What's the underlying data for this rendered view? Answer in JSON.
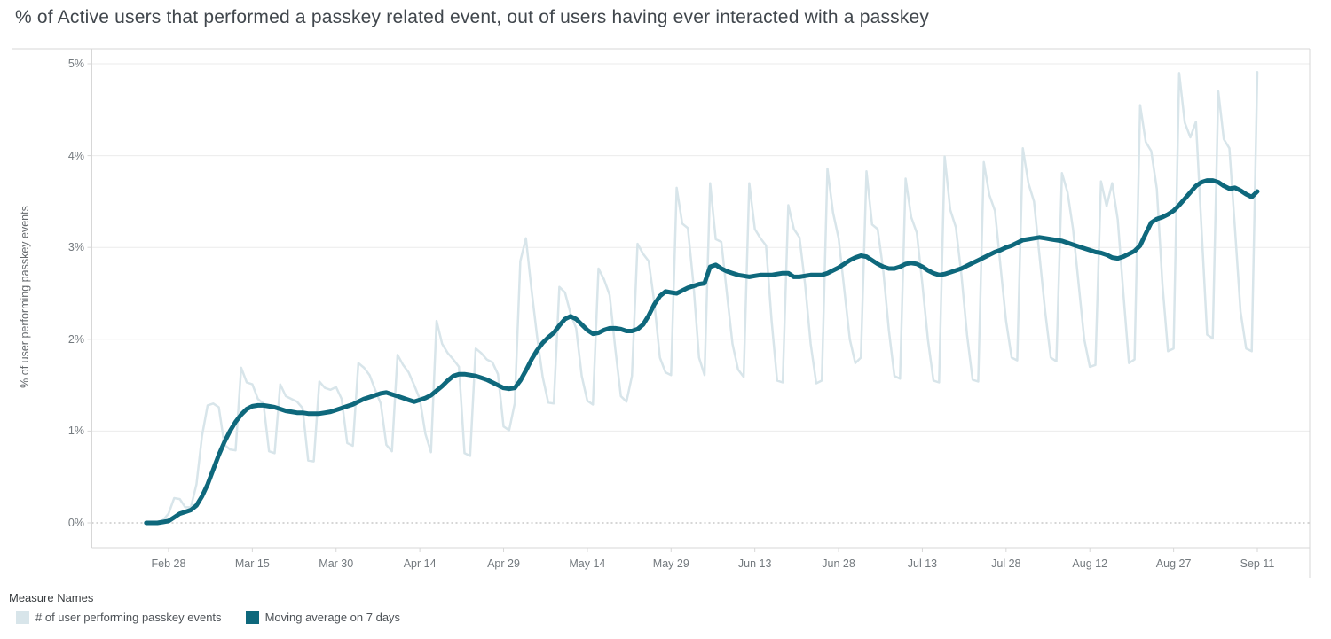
{
  "title": "% of Active users that performed a passkey related event, out of users having ever interacted with a passkey",
  "y_axis": {
    "title": "% of user performing passkey events",
    "ticks": [
      "0%",
      "1%",
      "2%",
      "3%",
      "4%",
      "5%"
    ],
    "min": 0,
    "max": 5
  },
  "x_axis": {
    "ticks": [
      "Feb 28",
      "Mar 15",
      "Mar 30",
      "Apr 14",
      "Apr 29",
      "May 14",
      "May 29",
      "Jun 13",
      "Jun 28",
      "Jul 13",
      "Jul 28",
      "Aug 12",
      "Aug 27",
      "Sep 11"
    ]
  },
  "legend": {
    "title": "Measure Names",
    "items": [
      {
        "label": "# of user performing passkey events",
        "color": "#d8e5ea"
      },
      {
        "label": "Moving average on 7 days",
        "color": "#0e687c"
      }
    ]
  },
  "colors": {
    "gridline": "#ebebeb",
    "zero_line": "#c8c8c8",
    "axis_border": "#d7d7d7",
    "series_raw": "#d8e5ea",
    "series_avg": "#0e687c"
  },
  "chart_data": {
    "type": "line",
    "title": "% of Active users that performed a passkey related event, out of users having ever interacted with a passkey",
    "xlabel": "",
    "ylabel": "% of user performing passkey events",
    "ylim": [
      0,
      5
    ],
    "unit": "percent",
    "grid": "horizontal",
    "legend_position": "bottom-left",
    "x": [
      "Feb 24",
      "Feb 25",
      "Feb 26",
      "Feb 27",
      "Feb 28",
      "Mar 1",
      "Mar 2",
      "Mar 3",
      "Mar 4",
      "Mar 5",
      "Mar 6",
      "Mar 7",
      "Mar 8",
      "Mar 9",
      "Mar 10",
      "Mar 11",
      "Mar 12",
      "Mar 13",
      "Mar 14",
      "Mar 15",
      "Mar 16",
      "Mar 17",
      "Mar 18",
      "Mar 19",
      "Mar 20",
      "Mar 21",
      "Mar 22",
      "Mar 23",
      "Mar 24",
      "Mar 25",
      "Mar 26",
      "Mar 27",
      "Mar 28",
      "Mar 29",
      "Mar 30",
      "Mar 31",
      "Apr 1",
      "Apr 2",
      "Apr 3",
      "Apr 4",
      "Apr 5",
      "Apr 6",
      "Apr 7",
      "Apr 8",
      "Apr 9",
      "Apr 10",
      "Apr 11",
      "Apr 12",
      "Apr 13",
      "Apr 14",
      "Apr 15",
      "Apr 16",
      "Apr 17",
      "Apr 18",
      "Apr 19",
      "Apr 20",
      "Apr 21",
      "Apr 22",
      "Apr 23",
      "Apr 24",
      "Apr 25",
      "Apr 26",
      "Apr 27",
      "Apr 28",
      "Apr 29",
      "Apr 30",
      "May 1",
      "May 2",
      "May 3",
      "May 4",
      "May 5",
      "May 6",
      "May 7",
      "May 8",
      "May 9",
      "May 10",
      "May 11",
      "May 12",
      "May 13",
      "May 14",
      "May 15",
      "May 16",
      "May 17",
      "May 18",
      "May 19",
      "May 20",
      "May 21",
      "May 22",
      "May 23",
      "May 24",
      "May 25",
      "May 26",
      "May 27",
      "May 28",
      "May 29",
      "May 30",
      "May 31",
      "Jun 1",
      "Jun 2",
      "Jun 3",
      "Jun 4",
      "Jun 5",
      "Jun 6",
      "Jun 7",
      "Jun 8",
      "Jun 9",
      "Jun 10",
      "Jun 11",
      "Jun 12",
      "Jun 13",
      "Jun 14",
      "Jun 15",
      "Jun 16",
      "Jun 17",
      "Jun 18",
      "Jun 19",
      "Jun 20",
      "Jun 21",
      "Jun 22",
      "Jun 23",
      "Jun 24",
      "Jun 25",
      "Jun 26",
      "Jun 27",
      "Jun 28",
      "Jun 29",
      "Jun 30",
      "Jul 1",
      "Jul 2",
      "Jul 3",
      "Jul 4",
      "Jul 5",
      "Jul 6",
      "Jul 7",
      "Jul 8",
      "Jul 9",
      "Jul 10",
      "Jul 11",
      "Jul 12",
      "Jul 13",
      "Jul 14",
      "Jul 15",
      "Jul 16",
      "Jul 17",
      "Jul 18",
      "Jul 19",
      "Jul 20",
      "Jul 21",
      "Jul 22",
      "Jul 23",
      "Jul 24",
      "Jul 25",
      "Jul 26",
      "Jul 27",
      "Jul 28",
      "Jul 29",
      "Jul 30",
      "Jul 31",
      "Aug 1",
      "Aug 2",
      "Aug 3",
      "Aug 4",
      "Aug 5",
      "Aug 6",
      "Aug 7",
      "Aug 8",
      "Aug 9",
      "Aug 10",
      "Aug 11",
      "Aug 12",
      "Aug 13",
      "Aug 14",
      "Aug 15",
      "Aug 16",
      "Aug 17",
      "Aug 18",
      "Aug 19",
      "Aug 20",
      "Aug 21",
      "Aug 22",
      "Aug 23",
      "Aug 24",
      "Aug 25",
      "Aug 26",
      "Aug 27",
      "Aug 28",
      "Aug 29",
      "Aug 30",
      "Aug 31",
      "Sep 1",
      "Sep 2",
      "Sep 3",
      "Sep 4",
      "Sep 5",
      "Sep 6",
      "Sep 7",
      "Sep 8",
      "Sep 9",
      "Sep 10",
      "Sep 11"
    ],
    "series": [
      {
        "name": "# of user performing passkey events",
        "color": "#d8e5ea",
        "width": 2.5,
        "values": [
          0.0,
          0.0,
          0.01,
          0.03,
          0.1,
          0.27,
          0.26,
          0.17,
          0.17,
          0.42,
          0.95,
          1.28,
          1.3,
          1.26,
          0.85,
          0.8,
          0.79,
          1.69,
          1.53,
          1.51,
          1.35,
          1.3,
          0.78,
          0.76,
          1.51,
          1.38,
          1.35,
          1.32,
          1.25,
          0.68,
          0.67,
          1.54,
          1.47,
          1.45,
          1.48,
          1.35,
          0.87,
          0.84,
          1.74,
          1.69,
          1.61,
          1.45,
          1.3,
          0.85,
          0.78,
          1.83,
          1.72,
          1.64,
          1.5,
          1.35,
          0.97,
          0.77,
          2.2,
          1.95,
          1.85,
          1.78,
          1.7,
          0.76,
          0.73,
          1.9,
          1.85,
          1.78,
          1.75,
          1.62,
          1.05,
          1.01,
          1.3,
          2.85,
          3.1,
          2.54,
          2.03,
          1.59,
          1.31,
          1.3,
          2.57,
          2.51,
          2.28,
          2.12,
          1.6,
          1.33,
          1.29,
          2.77,
          2.65,
          2.48,
          1.9,
          1.38,
          1.32,
          1.6,
          3.04,
          2.93,
          2.85,
          2.4,
          1.8,
          1.64,
          1.61,
          3.65,
          3.26,
          3.21,
          2.6,
          1.8,
          1.61,
          3.7,
          3.09,
          3.06,
          2.5,
          1.95,
          1.67,
          1.59,
          3.7,
          3.2,
          3.1,
          3.02,
          2.2,
          1.55,
          1.53,
          3.46,
          3.2,
          3.11,
          2.6,
          1.95,
          1.52,
          1.55,
          3.86,
          3.38,
          3.1,
          2.55,
          2.0,
          1.74,
          1.8,
          3.83,
          3.25,
          3.2,
          2.75,
          2.1,
          1.6,
          1.57,
          3.75,
          3.33,
          3.16,
          2.6,
          2.0,
          1.55,
          1.53,
          3.99,
          3.41,
          3.22,
          2.7,
          2.05,
          1.56,
          1.54,
          3.93,
          3.57,
          3.4,
          2.8,
          2.2,
          1.8,
          1.77,
          4.08,
          3.7,
          3.5,
          2.9,
          2.3,
          1.8,
          1.76,
          3.81,
          3.6,
          3.2,
          2.6,
          2.0,
          1.7,
          1.72,
          3.72,
          3.45,
          3.7,
          3.3,
          2.5,
          1.74,
          1.78,
          4.55,
          4.15,
          4.05,
          3.64,
          2.6,
          1.87,
          1.9,
          4.9,
          4.36,
          4.2,
          4.37,
          3.2,
          2.05,
          2.01,
          4.7,
          4.18,
          4.08,
          3.2,
          2.3,
          1.9,
          1.87,
          4.91
        ]
      },
      {
        "name": "Moving average on 7 days",
        "color": "#0e687c",
        "width": 5,
        "values": [
          0.0,
          0.0,
          0.0,
          0.01,
          0.02,
          0.06,
          0.1,
          0.12,
          0.14,
          0.19,
          0.29,
          0.42,
          0.58,
          0.74,
          0.88,
          1.0,
          1.1,
          1.18,
          1.24,
          1.27,
          1.28,
          1.28,
          1.27,
          1.26,
          1.24,
          1.22,
          1.21,
          1.2,
          1.2,
          1.19,
          1.19,
          1.19,
          1.2,
          1.21,
          1.23,
          1.25,
          1.27,
          1.29,
          1.32,
          1.35,
          1.37,
          1.39,
          1.41,
          1.42,
          1.4,
          1.38,
          1.36,
          1.34,
          1.32,
          1.34,
          1.36,
          1.39,
          1.44,
          1.49,
          1.55,
          1.6,
          1.62,
          1.62,
          1.61,
          1.6,
          1.58,
          1.56,
          1.53,
          1.5,
          1.47,
          1.46,
          1.47,
          1.55,
          1.66,
          1.78,
          1.88,
          1.96,
          2.02,
          2.07,
          2.15,
          2.22,
          2.25,
          2.22,
          2.16,
          2.1,
          2.06,
          2.07,
          2.1,
          2.12,
          2.12,
          2.11,
          2.09,
          2.09,
          2.11,
          2.16,
          2.26,
          2.38,
          2.47,
          2.52,
          2.51,
          2.5,
          2.53,
          2.56,
          2.58,
          2.6,
          2.61,
          2.79,
          2.81,
          2.77,
          2.74,
          2.72,
          2.7,
          2.69,
          2.68,
          2.69,
          2.7,
          2.7,
          2.7,
          2.71,
          2.72,
          2.72,
          2.68,
          2.68,
          2.69,
          2.7,
          2.7,
          2.7,
          2.72,
          2.75,
          2.78,
          2.82,
          2.86,
          2.89,
          2.91,
          2.9,
          2.86,
          2.82,
          2.79,
          2.77,
          2.77,
          2.79,
          2.82,
          2.83,
          2.82,
          2.79,
          2.75,
          2.72,
          2.7,
          2.71,
          2.73,
          2.75,
          2.77,
          2.8,
          2.83,
          2.86,
          2.89,
          2.92,
          2.95,
          2.97,
          3.0,
          3.02,
          3.05,
          3.08,
          3.09,
          3.1,
          3.11,
          3.1,
          3.09,
          3.08,
          3.07,
          3.05,
          3.03,
          3.01,
          2.99,
          2.97,
          2.95,
          2.94,
          2.92,
          2.89,
          2.88,
          2.9,
          2.93,
          2.96,
          3.02,
          3.15,
          3.27,
          3.31,
          3.33,
          3.36,
          3.4,
          3.46,
          3.53,
          3.6,
          3.67,
          3.71,
          3.73,
          3.73,
          3.71,
          3.67,
          3.64,
          3.65,
          3.62,
          3.58,
          3.55,
          3.61
        ]
      }
    ]
  }
}
